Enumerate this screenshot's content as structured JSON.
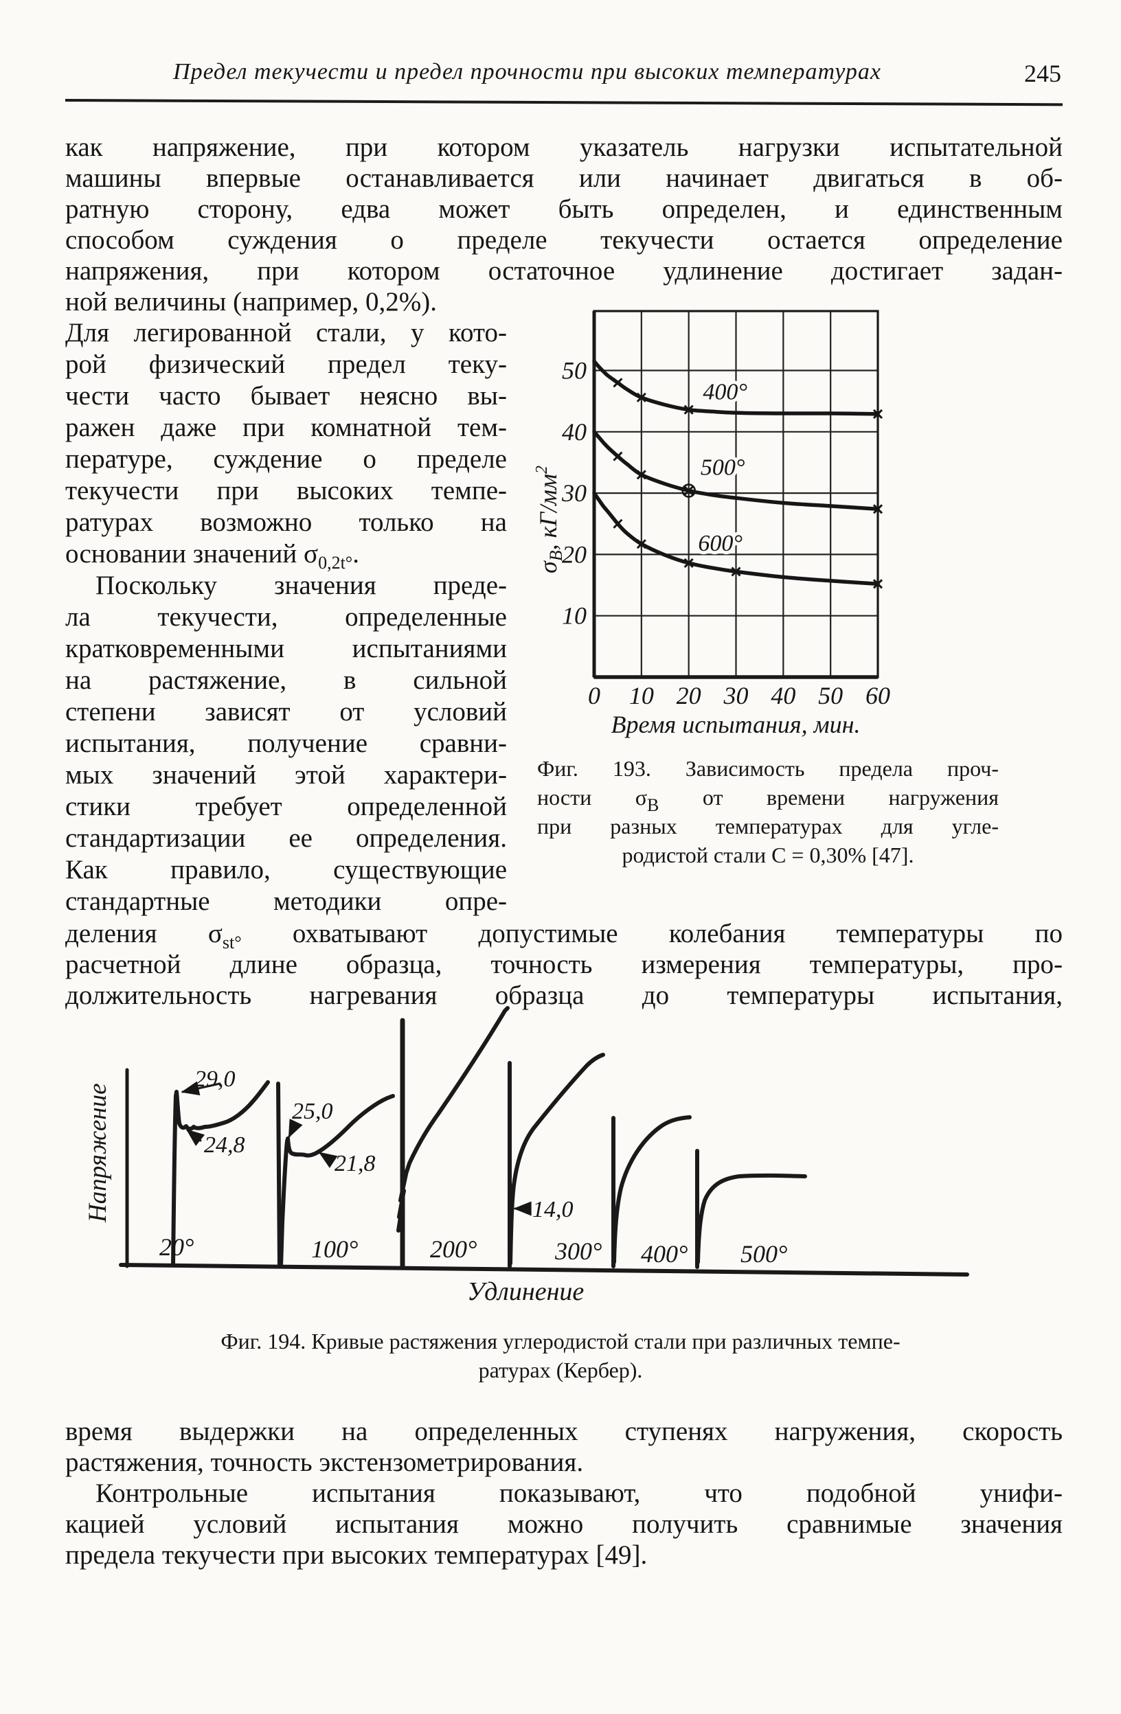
{
  "header": {
    "title": "Предел текучести и предел прочности при высоких температурах",
    "page_number": "245"
  },
  "para1": {
    "lines": [
      "как напряжение, при котором указатель нагрузки испытательной",
      "машины впервые останавливается или начинает двигаться в об-",
      "ратную сторону, едва может быть определен, и единственным",
      "способом суждения о пределе текучести остается определение",
      "напряжения, при котором остаточное удлинение достигает задан-",
      "ной величины (например, 0,2%)."
    ]
  },
  "left_col": {
    "lines_a": [
      "Для легированной стали, у кото-",
      "рой физический предел теку-",
      "чести часто бывает неясно вы-",
      "ражен даже при комнатной тем-",
      "пературе, суждение о пределе",
      "текучести при высоких темпе-",
      "ратурах возможно только на"
    ],
    "sigma_line": {
      "pre": "основании значений σ",
      "sub": "0,2t°",
      "post": "."
    },
    "lines_b": [
      "Поскольку значения преде-",
      "ла текучести, определенные",
      "кратковременными испытаниями",
      "на растяжение, в сильной",
      "степени зависят от условий",
      "испытания, получение сравни-",
      "мых значений этой характери-",
      "стики требует определенной",
      "стандартизации ее определения.",
      "Как правило, существующие",
      "стандартные методики опре-"
    ]
  },
  "para2": {
    "line1": {
      "pre": "деления σ",
      "sub": "st°",
      "post": " охватывают допустимые колебания температуры по"
    },
    "lines": [
      "расчетной длине образца, точность измерения температуры, про-",
      "должительность нагревания образца до температуры испытания,"
    ]
  },
  "para3": {
    "lines": [
      "время выдержки на определенных ступенях нагружения, скорость",
      "растяжения, точность экстензометрирования."
    ]
  },
  "para4": {
    "lines": [
      "Контрольные испытания показывают, что подобной унифи-",
      "кацией условий испытания можно получить сравнимые значения",
      "предела текучести при высоких температурах [49]."
    ]
  },
  "fig193": {
    "ylabel": {
      "sigma": "σ",
      "sub": "B",
      "rest": ", кГ/мм",
      "sup": "2"
    },
    "xlabel": "Время испытания, мин.",
    "caption": {
      "line1": "Фиг. 193. Зависимость предела проч-",
      "line2_pre": "ности σ",
      "line2_sub": "B",
      "line2_post": " от времени нагружения",
      "line3": "при разных температурах для угле-",
      "line4": "родистой стали С = 0,30% [47]."
    }
  },
  "chart_data": {
    "type": "line",
    "title": "",
    "xlabel": "Время испытания, мин.",
    "ylabel": "σB, кГ/мм²",
    "xlim": [
      0,
      60
    ],
    "ylim": [
      0,
      59.8
    ],
    "x_ticks": [
      0,
      10,
      20,
      30,
      40,
      50,
      60
    ],
    "y_ticks": [
      10,
      20,
      30,
      40,
      50
    ],
    "grid": true,
    "legend_position": "inline-labels",
    "series": [
      {
        "name": "400°",
        "x": [
          0,
          1,
          2,
          3,
          5,
          7,
          10,
          15,
          20,
          25,
          30,
          40,
          50,
          60
        ],
        "y": [
          51.5,
          50.6,
          49.8,
          49.1,
          48.0,
          46.9,
          45.6,
          44.4,
          43.6,
          43.3,
          43.1,
          43.0,
          43.0,
          42.9
        ],
        "markers": [
          [
            5,
            48.0
          ],
          [
            10,
            45.6
          ],
          [
            20,
            43.6
          ],
          [
            60,
            42.9
          ]
        ],
        "label_pos": [
          23,
          45.3
        ]
      },
      {
        "name": "500°",
        "x": [
          0,
          1,
          2,
          3,
          5,
          7,
          10,
          15,
          20,
          25,
          30,
          40,
          50,
          60
        ],
        "y": [
          40.0,
          39.1,
          38.2,
          37.4,
          36.0,
          34.7,
          33.0,
          31.5,
          30.4,
          29.7,
          29.2,
          28.4,
          27.9,
          27.4
        ],
        "markers": [
          [
            5,
            36.0
          ],
          [
            10,
            33.0
          ],
          [
            20,
            30.4
          ],
          [
            60,
            27.4
          ]
        ],
        "circle_marker": [
          20,
          30.4
        ],
        "label_pos": [
          22.5,
          33.0
        ]
      },
      {
        "name": "600°",
        "x": [
          0,
          1,
          2,
          3,
          5,
          7,
          10,
          15,
          20,
          25,
          30,
          40,
          50,
          60
        ],
        "y": [
          30.0,
          28.9,
          27.8,
          26.9,
          25.0,
          23.4,
          21.7,
          19.9,
          18.6,
          17.8,
          17.2,
          16.3,
          15.7,
          15.2
        ],
        "markers": [
          [
            5,
            25.0
          ],
          [
            10,
            21.7
          ],
          [
            20,
            18.6
          ],
          [
            30,
            17.2
          ],
          [
            60,
            15.2
          ]
        ],
        "label_pos": [
          22,
          20.6
        ]
      }
    ]
  },
  "fig194": {
    "ylabel": "Напряжение",
    "xlabel": "Удлинение",
    "temps": [
      "20°",
      "100°",
      "200°",
      "300°",
      "400°",
      "500°"
    ],
    "annotations": [
      "29,0",
      "24,8",
      "25,0",
      "21,8",
      "14,0"
    ],
    "caption": {
      "line1": "Фиг. 194. Кривые растяжения углеродистой стали при различных темпе-",
      "line2": "ратурах (Кербер)."
    }
  }
}
